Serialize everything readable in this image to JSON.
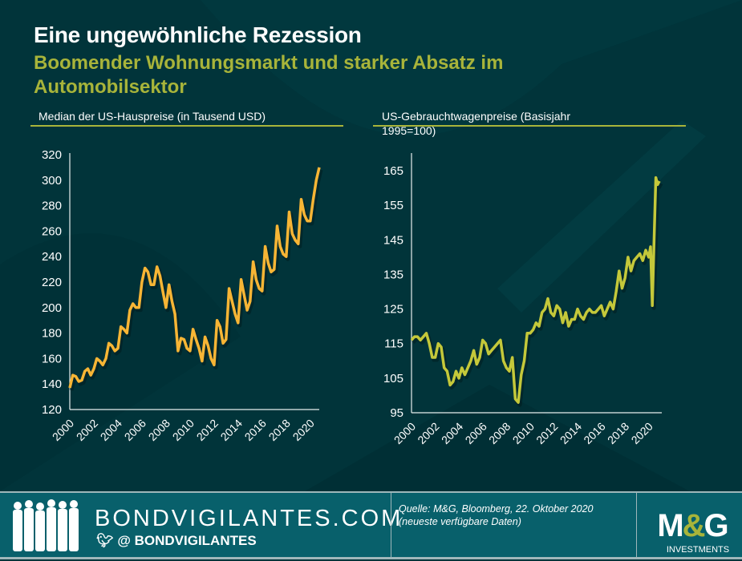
{
  "header": {
    "title": "Eine ungewöhnliche Rezession",
    "subtitle": "Boomender Wohnungsmarkt und starker Absatz im Automobilsektor"
  },
  "footer": {
    "site": "BONDVIGILANTES.COM",
    "twitter_handle": "@ BONDVIGILANTES",
    "source_line1": "Quelle: M&G, Bloomberg, 22. Oktober 2020",
    "source_line2": "(neueste verfügbare Daten)",
    "logo_text": "M&G",
    "logo_sub": "INVESTMENTS"
  },
  "colors": {
    "background": "#01343a",
    "accent": "#a8b43a",
    "house_line": "#f7b535",
    "car_line": "#c4c83a",
    "footer": "#08606b"
  },
  "chart_data": [
    {
      "type": "line",
      "title": "Median der US-Hauspreise (in Tausend USD)",
      "xlabel": "",
      "ylabel": "",
      "ylim": [
        120,
        320
      ],
      "yticks": [
        120,
        140,
        160,
        180,
        200,
        220,
        240,
        260,
        280,
        300,
        320
      ],
      "xlim": [
        2000,
        2020.75
      ],
      "xticks": [
        2000,
        2002,
        2004,
        2006,
        2008,
        2010,
        2012,
        2014,
        2016,
        2018,
        2020
      ],
      "grid": false,
      "x": [
        2000,
        2000.25,
        2000.5,
        2000.75,
        2001,
        2001.25,
        2001.5,
        2001.75,
        2002,
        2002.25,
        2002.5,
        2002.75,
        2003,
        2003.25,
        2003.5,
        2003.75,
        2004,
        2004.25,
        2004.5,
        2004.75,
        2005,
        2005.25,
        2005.5,
        2005.75,
        2006,
        2006.25,
        2006.5,
        2006.75,
        2007,
        2007.25,
        2007.5,
        2007.75,
        2008,
        2008.25,
        2008.5,
        2008.75,
        2009,
        2009.25,
        2009.5,
        2009.75,
        2010,
        2010.25,
        2010.5,
        2010.75,
        2011,
        2011.25,
        2011.5,
        2011.75,
        2012,
        2012.25,
        2012.5,
        2012.75,
        2013,
        2013.25,
        2013.5,
        2013.75,
        2014,
        2014.25,
        2014.5,
        2014.75,
        2015,
        2015.25,
        2015.5,
        2015.75,
        2016,
        2016.25,
        2016.5,
        2016.75,
        2017,
        2017.25,
        2017.5,
        2017.75,
        2018,
        2018.25,
        2018.5,
        2018.75,
        2019,
        2019.25,
        2019.5,
        2019.75,
        2020,
        2020.25,
        2020.5,
        2020.75
      ],
      "values": [
        137,
        147,
        146,
        142,
        143,
        150,
        152,
        147,
        152,
        160,
        158,
        155,
        160,
        172,
        170,
        166,
        168,
        185,
        183,
        180,
        198,
        203,
        200,
        200,
        220,
        231,
        228,
        218,
        218,
        232,
        225,
        212,
        200,
        218,
        205,
        195,
        166,
        176,
        175,
        168,
        166,
        183,
        175,
        168,
        158,
        177,
        170,
        160,
        155,
        190,
        185,
        172,
        175,
        215,
        205,
        195,
        188,
        222,
        210,
        198,
        205,
        236,
        222,
        215,
        213,
        248,
        235,
        228,
        230,
        264,
        248,
        242,
        240,
        275,
        258,
        253,
        250,
        285,
        273,
        268,
        268,
        285,
        300,
        310
      ]
    },
    {
      "type": "line",
      "title": "US-Gebrauchtwagenpreise (Basisjahr 1995=100)",
      "xlabel": "",
      "ylabel": "",
      "ylim": [
        95,
        170
      ],
      "yticks": [
        95,
        105,
        115,
        125,
        135,
        145,
        155,
        165
      ],
      "xlim": [
        2000,
        2021.1
      ],
      "xticks": [
        2000,
        2002,
        2004,
        2006,
        2008,
        2010,
        2012,
        2014,
        2016,
        2018,
        2020
      ],
      "grid": false,
      "x": [
        2000,
        2000.25,
        2000.5,
        2000.75,
        2001,
        2001.25,
        2001.5,
        2001.75,
        2002,
        2002.25,
        2002.5,
        2002.75,
        2003,
        2003.25,
        2003.5,
        2003.75,
        2004,
        2004.25,
        2004.5,
        2004.75,
        2005,
        2005.25,
        2005.5,
        2005.75,
        2006,
        2006.25,
        2006.5,
        2006.75,
        2007,
        2007.25,
        2007.5,
        2007.75,
        2008,
        2008.25,
        2008.5,
        2008.75,
        2009,
        2009.25,
        2009.5,
        2009.75,
        2010,
        2010.25,
        2010.5,
        2010.75,
        2011,
        2011.25,
        2011.5,
        2011.75,
        2012,
        2012.25,
        2012.5,
        2012.75,
        2013,
        2013.25,
        2013.5,
        2013.75,
        2014,
        2014.25,
        2014.5,
        2014.75,
        2015,
        2015.25,
        2015.5,
        2015.75,
        2016,
        2016.25,
        2016.5,
        2016.75,
        2017,
        2017.25,
        2017.5,
        2017.75,
        2018,
        2018.25,
        2018.5,
        2018.75,
        2019,
        2019.25,
        2019.5,
        2019.75,
        2020,
        2020.15,
        2020.3,
        2020.45,
        2020.6,
        2020.75,
        2020.9
      ],
      "values": [
        116,
        117,
        117,
        116,
        117,
        118,
        115,
        111,
        111,
        115,
        114,
        108,
        107,
        103,
        104,
        107,
        105,
        108,
        106,
        108,
        110,
        113,
        109,
        111,
        116,
        115,
        112,
        113,
        114,
        115,
        116,
        110,
        108,
        107,
        111,
        99,
        98,
        106,
        110,
        118,
        118,
        119,
        121,
        120,
        124,
        125,
        128,
        124,
        123,
        126,
        125,
        121,
        124,
        120,
        122,
        122,
        125,
        123,
        122,
        124,
        125,
        124,
        124,
        125,
        126,
        123,
        125,
        127,
        125,
        130,
        136,
        131,
        134,
        140,
        136,
        139,
        140,
        141,
        139,
        142,
        140,
        143,
        126,
        145,
        163,
        161,
        162
      ]
    }
  ]
}
